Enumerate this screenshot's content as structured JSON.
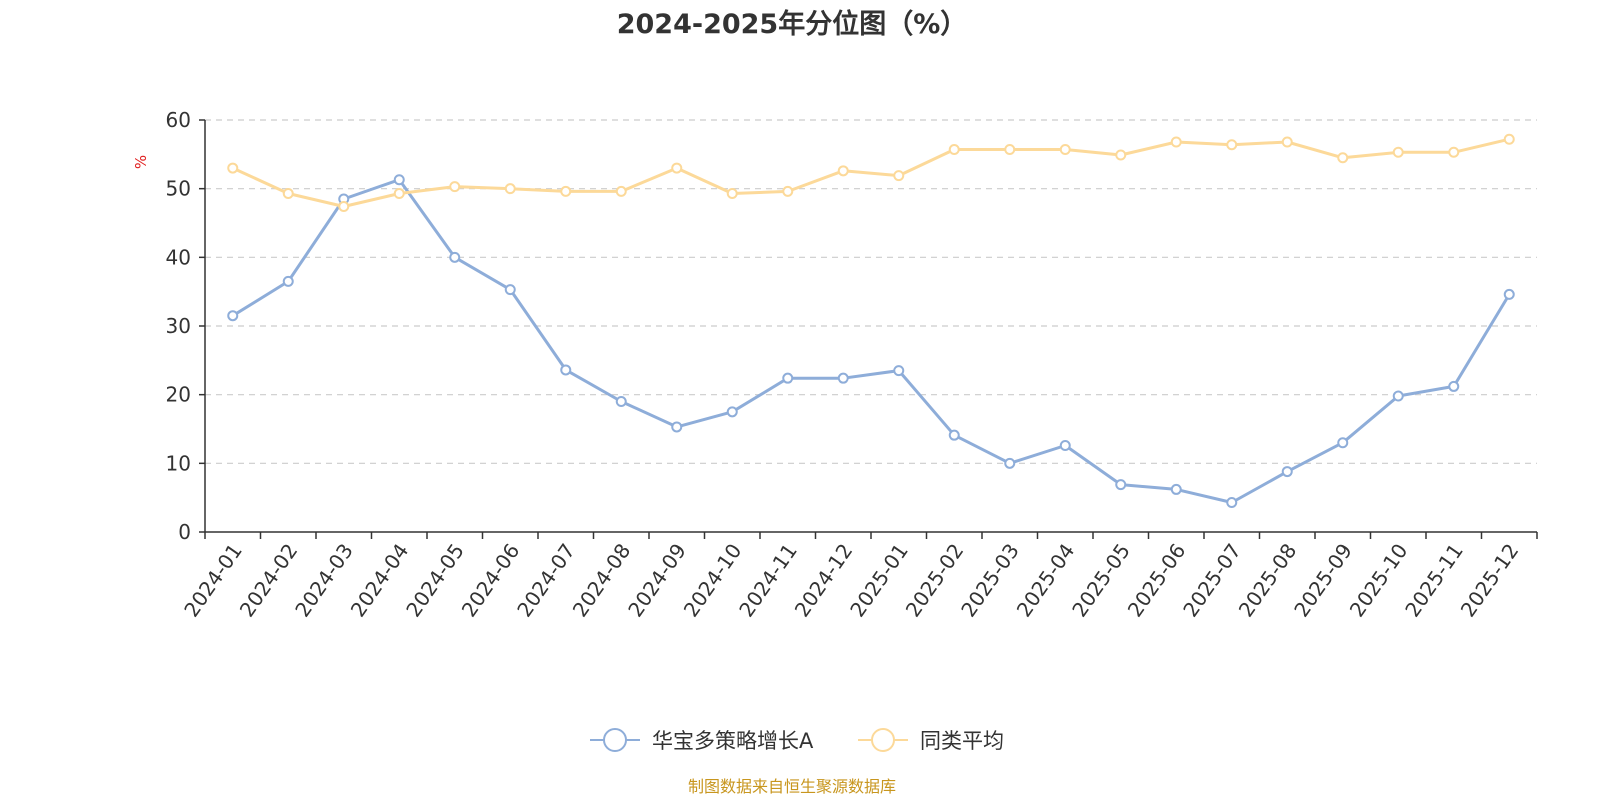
{
  "chart_data": {
    "type": "line",
    "title": "2024-2025年分位图（%）",
    "ylabel": "%",
    "xlabel": "",
    "ylim": [
      0,
      60
    ],
    "yticks": [
      0,
      10,
      20,
      30,
      40,
      50,
      60
    ],
    "grid": true,
    "legend_position": "bottom-center",
    "categories": [
      "2024-01",
      "2024-02",
      "2024-03",
      "2024-04",
      "2024-05",
      "2024-06",
      "2024-07",
      "2024-08",
      "2024-09",
      "2024-10",
      "2024-11",
      "2024-12",
      "2025-01",
      "2025-02",
      "2025-03",
      "2025-04",
      "2025-05",
      "2025-06",
      "2025-07",
      "2025-08",
      "2025-09",
      "2025-10",
      "2025-11",
      "2025-12"
    ],
    "series": [
      {
        "name": "华宝多策略增长A",
        "color": "#8eadd9",
        "values": [
          31.5,
          36.5,
          48.5,
          51.3,
          40.0,
          35.3,
          23.6,
          19.0,
          15.3,
          17.5,
          22.4,
          22.4,
          23.5,
          14.1,
          10.0,
          12.6,
          6.9,
          6.2,
          4.3,
          8.8,
          13.0,
          19.8,
          21.2,
          34.6
        ]
      },
      {
        "name": "同类平均",
        "color": "#fcd999",
        "values": [
          53.0,
          49.3,
          47.4,
          49.3,
          50.3,
          50.0,
          49.6,
          49.6,
          53.0,
          49.3,
          49.6,
          52.6,
          51.9,
          55.7,
          55.7,
          55.7,
          54.9,
          56.8,
          56.4,
          56.8,
          54.5,
          55.3,
          55.3,
          57.2
        ]
      }
    ],
    "source": "制图数据来自恒生聚源数据库",
    "colors": {
      "unit_label": "#e02020",
      "source": "#c8961e",
      "axis": "#333333",
      "grid": "#cccccc"
    }
  }
}
